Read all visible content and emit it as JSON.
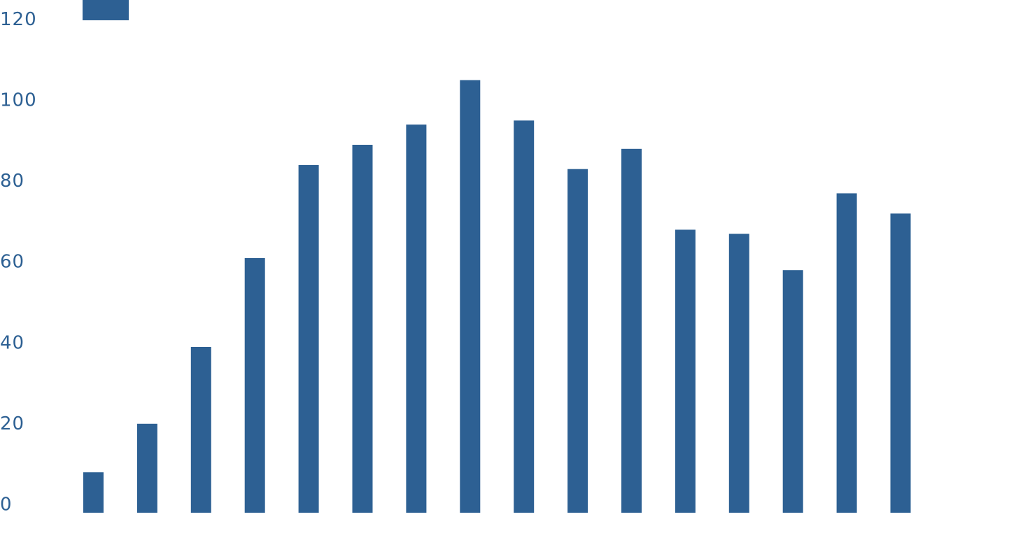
{
  "chart_data": {
    "type": "bar",
    "categories": [
      "",
      "",
      "",
      "",
      "",
      "",
      "",
      "",
      "",
      "",
      "",
      "",
      "",
      "",
      "",
      ""
    ],
    "series": [
      {
        "values": [
          10,
          22,
          41,
          63,
          86,
          91,
          96,
          107,
          97,
          85,
          90,
          70,
          69,
          60,
          79,
          74
        ]
      }
    ],
    "y_ticks": [
      "0",
      "20",
      "40",
      "60",
      "80",
      "100",
      "120"
    ],
    "ylim": [
      0,
      124
    ],
    "grid": false,
    "legend": "top-left",
    "bar_color": "#2d6093",
    "text_color": "#2d6093",
    "background": "#ffffff"
  }
}
